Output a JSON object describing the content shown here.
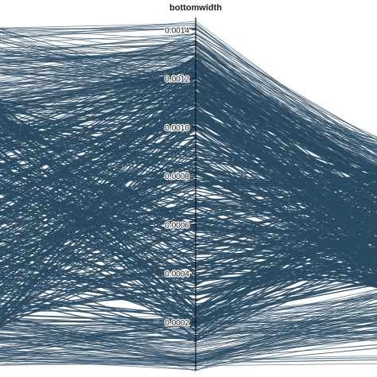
{
  "chart_data": {
    "type": "parallel-coordinates",
    "line_color": "#2a4a62",
    "axes": [
      {
        "name": "bottomwidth",
        "ticks": [
          "0.0014",
          "0.0012",
          "0.0010",
          "0.0008",
          "0.0006",
          "0.0004",
          "0.0002"
        ],
        "tick_values": [
          0.0014,
          0.0012,
          0.001,
          0.0008,
          0.0006,
          0.0004,
          0.0002
        ],
        "range": [
          0,
          0.00145
        ]
      }
    ],
    "grid": false,
    "legend": "none"
  }
}
